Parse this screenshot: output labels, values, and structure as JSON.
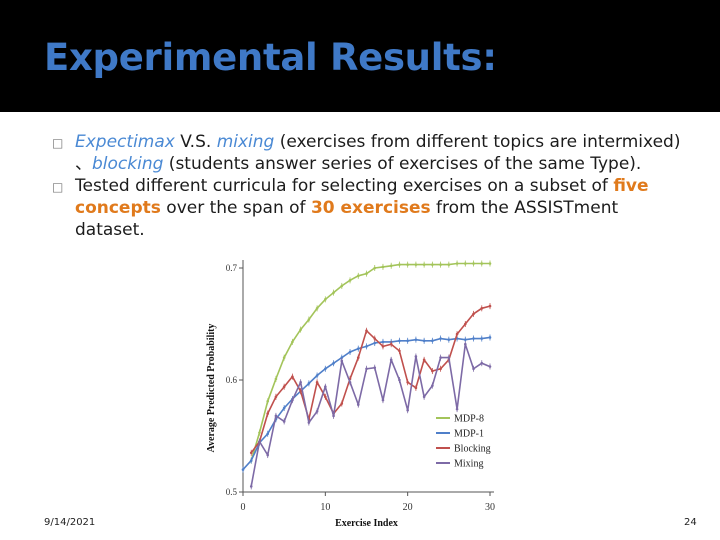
{
  "slide": {
    "title": "Experimental Results:",
    "date": "9/14/2021",
    "page": "24",
    "bullet_mark": "□"
  },
  "bullets": [
    {
      "parts": [
        {
          "text": "Expectimax",
          "style": "em-blue"
        },
        {
          "text": " V.S. ",
          "style": ""
        },
        {
          "text": "mixing",
          "style": "em-blue"
        },
        {
          "text": " (exercises from different topics are intermixed) 、",
          "style": ""
        },
        {
          "text": "blocking",
          "style": "em-blue"
        },
        {
          "text": " (students answer series of exercises of the same Type).",
          "style": ""
        }
      ]
    },
    {
      "parts": [
        {
          "text": "Tested different curricula for selecting exercises on a subset of ",
          "style": ""
        },
        {
          "text": "five concepts",
          "style": "hl-orange"
        },
        {
          "text": " over the span of ",
          "style": ""
        },
        {
          "text": "30 exercises",
          "style": "hl-orange"
        },
        {
          "text": " from the ASSISTment dataset.",
          "style": ""
        }
      ]
    }
  ],
  "colors": {
    "title": "#3f79c7",
    "highlight_orange": "#e07a1c",
    "emphasis_blue": "#4a89d4"
  },
  "chart_data": {
    "type": "line",
    "xlabel": "Exercise Index",
    "ylabel": "Average Predicted Probability",
    "xlim": [
      0,
      30
    ],
    "ylim": [
      0.5,
      0.7
    ],
    "xticks": [
      0,
      10,
      20,
      30
    ],
    "yticks": [
      0.5,
      0.6,
      0.7
    ],
    "grid": false,
    "legend": "bottom-right",
    "series": [
      {
        "name": "MDP-8",
        "color": "#a3c45a",
        "x": [
          1,
          2,
          3,
          4,
          5,
          6,
          7,
          8,
          9,
          10,
          11,
          12,
          13,
          14,
          15,
          16,
          17,
          18,
          19,
          20,
          21,
          22,
          23,
          24,
          25,
          26,
          27,
          28,
          29,
          30
        ],
        "y": [
          0.528,
          0.553,
          0.581,
          0.601,
          0.62,
          0.634,
          0.645,
          0.654,
          0.664,
          0.672,
          0.678,
          0.684,
          0.689,
          0.693,
          0.695,
          0.7,
          0.701,
          0.702,
          0.703,
          0.703,
          0.703,
          0.703,
          0.703,
          0.703,
          0.703,
          0.704,
          0.704,
          0.704,
          0.704,
          0.704
        ]
      },
      {
        "name": "MDP-1",
        "color": "#4f7fc9",
        "x": [
          0,
          1,
          2,
          3,
          4,
          5,
          6,
          7,
          8,
          9,
          10,
          11,
          12,
          13,
          14,
          15,
          16,
          17,
          18,
          19,
          20,
          21,
          22,
          23,
          24,
          25,
          26,
          27,
          28,
          29,
          30
        ],
        "y": [
          0.52,
          0.528,
          0.544,
          0.552,
          0.565,
          0.575,
          0.583,
          0.59,
          0.597,
          0.604,
          0.61,
          0.615,
          0.62,
          0.625,
          0.628,
          0.63,
          0.633,
          0.634,
          0.634,
          0.635,
          0.635,
          0.636,
          0.635,
          0.635,
          0.637,
          0.636,
          0.637,
          0.636,
          0.637,
          0.637,
          0.638
        ]
      },
      {
        "name": "Blocking",
        "color": "#c0504d",
        "x": [
          1,
          2,
          3,
          4,
          5,
          6,
          7,
          8,
          9,
          10,
          11,
          12,
          13,
          14,
          15,
          16,
          17,
          18,
          19,
          20,
          21,
          22,
          23,
          24,
          25,
          26,
          27,
          28,
          29,
          30
        ],
        "y": [
          0.535,
          0.545,
          0.57,
          0.585,
          0.594,
          0.603,
          0.59,
          0.565,
          0.598,
          0.585,
          0.57,
          0.579,
          0.601,
          0.62,
          0.644,
          0.637,
          0.63,
          0.632,
          0.626,
          0.598,
          0.593,
          0.618,
          0.608,
          0.61,
          0.618,
          0.641,
          0.65,
          0.659,
          0.664,
          0.666
        ]
      },
      {
        "name": "Mixing",
        "color": "#7d6aa6",
        "x": [
          1,
          2,
          3,
          4,
          5,
          6,
          7,
          8,
          9,
          10,
          11,
          12,
          13,
          14,
          15,
          16,
          17,
          18,
          19,
          20,
          21,
          22,
          23,
          24,
          25,
          26,
          27,
          28,
          29,
          30
        ],
        "y": [
          0.505,
          0.545,
          0.533,
          0.568,
          0.563,
          0.582,
          0.598,
          0.562,
          0.572,
          0.594,
          0.568,
          0.617,
          0.598,
          0.578,
          0.61,
          0.611,
          0.582,
          0.618,
          0.6,
          0.573,
          0.621,
          0.585,
          0.595,
          0.62,
          0.62,
          0.574,
          0.632,
          0.61,
          0.615,
          0.612
        ]
      }
    ]
  }
}
